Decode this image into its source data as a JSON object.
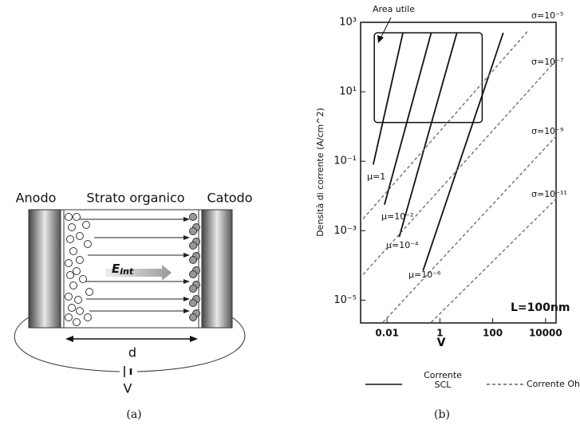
{
  "panel_a": {
    "anode_label": "Anodo",
    "layer_label": "Strato organico",
    "cathode_label": "Catodo",
    "field_label": "E",
    "field_subscript": "int",
    "thickness_label": "d",
    "voltage_label": "V",
    "caption": "(a)"
  },
  "chart_data": {
    "type": "line",
    "x_label": "V",
    "y_label": "Densità di corrente (A/cm^2)",
    "log_x": true,
    "log_y": true,
    "xlim": [
      0.001,
      25000
    ],
    "ylim": [
      2.2e-06,
      1000
    ],
    "xticks": [
      0.01,
      1,
      100,
      10000
    ],
    "yticks": [
      {
        "value": 1000,
        "label": "10³"
      },
      {
        "value": 10,
        "label": "10¹"
      },
      {
        "value": 0.1,
        "label": "10⁻¹"
      },
      {
        "value": 0.001,
        "label": "10⁻³"
      },
      {
        "value": 1e-05,
        "label": "10⁻⁵"
      }
    ],
    "series": [
      {
        "name": "Corrente SCL",
        "color": "#111111",
        "dashed": false,
        "lines": [
          {
            "label": "μ=1",
            "x": [
              0.003,
              0.04
            ],
            "values": [
              0.08,
              500
            ]
          },
          {
            "label": "μ=10⁻²",
            "x": [
              0.008,
              0.47
            ],
            "values": [
              0.0056,
              500
            ]
          },
          {
            "label": "μ=10⁻⁴",
            "x": [
              0.029,
              4.4
            ],
            "values": [
              0.00066,
              500
            ]
          },
          {
            "label": "μ=10⁻⁶",
            "x": [
              0.23,
              250
            ],
            "values": [
              7e-05,
              500
            ]
          }
        ]
      },
      {
        "name": "Corrente Ohm",
        "color": "#666666",
        "dashed": true,
        "lines": [
          {
            "label": "σ=10⁻⁵",
            "x": [
              0.00125,
              2300
            ],
            "values": [
              0.0022,
              600
            ]
          },
          {
            "label": "σ=10⁻⁷",
            "x": [
              0.00125,
              26000
            ],
            "values": [
              5.5e-05,
              83
            ]
          },
          {
            "label": "σ=10⁻⁹",
            "x": [
              0.007,
              26000
            ],
            "values": [
              2.3e-06,
              0.54
            ]
          },
          {
            "label": "σ=10⁻¹¹",
            "x": [
              0.47,
              26000
            ],
            "values": [
              2.3e-06,
              0.0085
            ]
          }
        ]
      }
    ],
    "area": {
      "label": "Area utile",
      "x": [
        0.0033,
        40
      ],
      "values": [
        1.3,
        500
      ]
    },
    "annotation": "L=100nm",
    "caption": "(b)"
  }
}
